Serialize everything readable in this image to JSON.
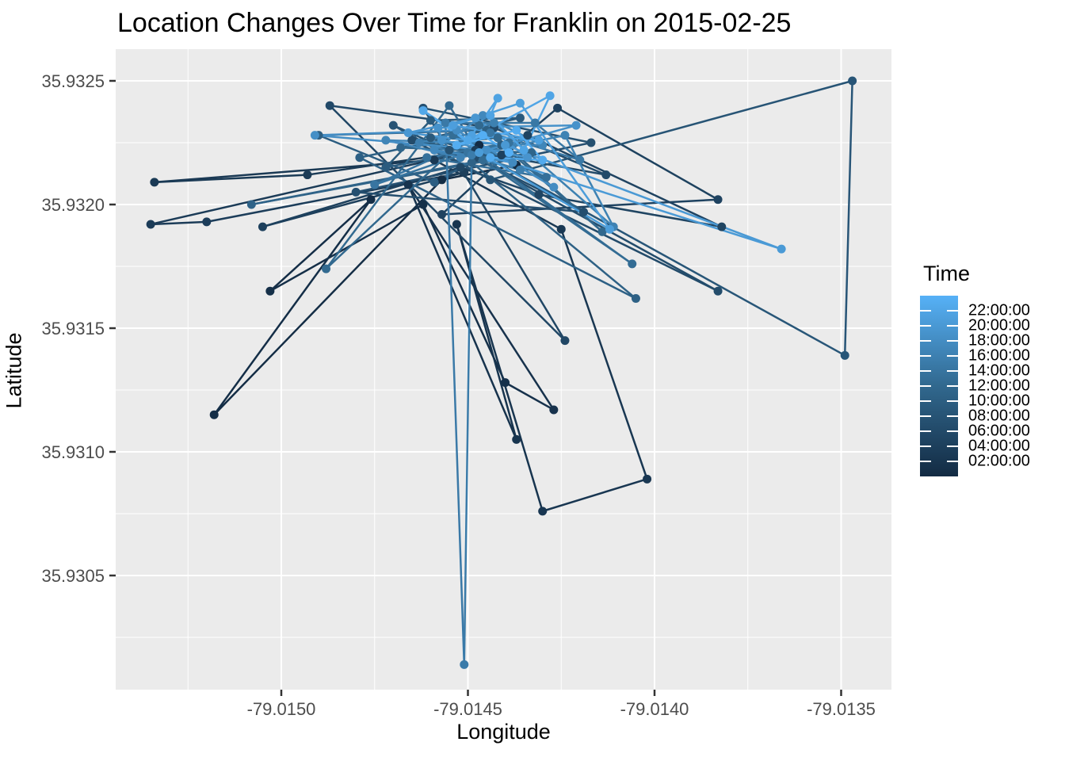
{
  "chart_data": {
    "type": "scatter",
    "subtype": "connected path over time (geom_path + geom_point, colour mapped to time)",
    "title": "Location Changes Over Time for Franklin on 2015-02-25",
    "xlabel": "Longitude",
    "ylabel": "Latitude",
    "x_ticks": [
      -79.015,
      -79.0145,
      -79.014,
      -79.0135
    ],
    "y_ticks": [
      35.9305,
      35.931,
      35.9315,
      35.932,
      35.9325
    ],
    "xlim": [
      -79.015443,
      -79.013365
    ],
    "ylim": [
      35.930038,
      35.932628
    ],
    "grid": {
      "major": true,
      "minor": true,
      "color": "#ffffff"
    },
    "panel_bg": "#EBEBEB",
    "tick_label_color": "#4D4D4D",
    "legend": {
      "title": "Time",
      "position": "right",
      "type": "colorbar",
      "low_color": "#132B43",
      "mid_color": "#31688E",
      "high_color": "#56B1F7",
      "domain_hours": [
        0,
        24
      ],
      "tick_hours": [
        22,
        20,
        18,
        16,
        14,
        12,
        10,
        8,
        6,
        4,
        2
      ],
      "tick_labels": [
        "22:00:00",
        "20:00:00",
        "18:00:00",
        "16:00:00",
        "14:00:00",
        "12:00:00",
        "10:00:00",
        "08:00:00",
        "06:00:00",
        "04:00:00",
        "02:00:00"
      ]
    },
    "points": [
      [
        -79.01447,
        35.93224,
        "00:05"
      ],
      [
        -79.01437,
        35.93216,
        "00:14"
      ],
      [
        -79.01457,
        35.9321,
        "00:23"
      ],
      [
        -79.01518,
        35.93115,
        "00:34"
      ],
      [
        -79.01476,
        35.93202,
        "00:41"
      ],
      [
        -79.01503,
        35.93165,
        "00:48"
      ],
      [
        -79.01462,
        35.932,
        "01:00"
      ],
      [
        -79.0144,
        35.93128,
        "01:15"
      ],
      [
        -79.01427,
        35.93117,
        "01:28"
      ],
      [
        -79.01466,
        35.93208,
        "01:34"
      ],
      [
        -79.01437,
        35.93105,
        "01:42"
      ],
      [
        -79.01453,
        35.93192,
        "01:55"
      ],
      [
        -79.0143,
        35.93076,
        "02:10"
      ],
      [
        -79.01402,
        35.93089,
        "02:24"
      ],
      [
        -79.01425,
        35.9319,
        "02:33"
      ],
      [
        -79.01459,
        35.93218,
        "02:40"
      ],
      [
        -79.01534,
        35.93209,
        "02:56"
      ],
      [
        -79.01493,
        35.93212,
        "03:05"
      ],
      [
        -79.01448,
        35.93222,
        "03:10"
      ],
      [
        -79.01535,
        35.93192,
        "03:24"
      ],
      [
        -79.0152,
        35.93193,
        "03:38"
      ],
      [
        -79.01451,
        35.93213,
        "03:52"
      ],
      [
        -79.01505,
        35.93191,
        "04:06"
      ],
      [
        -79.01441,
        35.9322,
        "04:20"
      ],
      [
        -79.01426,
        35.93239,
        "04:27"
      ],
      [
        -79.01383,
        35.93202,
        "04:34"
      ],
      [
        -79.01457,
        35.93196,
        "04:41"
      ],
      [
        -79.01434,
        35.93228,
        "04:48"
      ],
      [
        -79.01382,
        35.93191,
        "05:02"
      ],
      [
        -79.01431,
        35.93204,
        "05:09"
      ],
      [
        -79.01452,
        35.93215,
        "05:16"
      ],
      [
        -79.01424,
        35.93145,
        "05:30"
      ],
      [
        -79.01487,
        35.9324,
        "05:44"
      ],
      [
        -79.01443,
        35.93231,
        "05:58"
      ],
      [
        -79.01413,
        35.93212,
        "06:05"
      ],
      [
        -79.01465,
        35.93226,
        "06:12"
      ],
      [
        -79.01383,
        35.93165,
        "06:26"
      ],
      [
        -79.01448,
        35.93219,
        "06:40"
      ],
      [
        -79.01419,
        35.93197,
        "06:54"
      ],
      [
        -79.0148,
        35.93205,
        "07:08"
      ],
      [
        -79.01417,
        35.93225,
        "07:15"
      ],
      [
        -79.01462,
        35.93239,
        "07:22"
      ],
      [
        -79.01455,
        35.93222,
        "07:36"
      ],
      [
        -79.0147,
        35.93232,
        "07:50"
      ],
      [
        -79.01444,
        35.9321,
        "08:02"
      ],
      [
        -79.01347,
        35.9325,
        "08:15"
      ],
      [
        -79.01349,
        35.93139,
        "08:30"
      ],
      [
        -79.01446,
        35.9322,
        "08:46"
      ],
      [
        -79.0146,
        35.93227,
        "09:00"
      ],
      [
        -79.01436,
        35.93235,
        "09:14"
      ],
      [
        -79.0146,
        35.93234,
        "09:21"
      ],
      [
        -79.01472,
        35.93215,
        "09:28"
      ],
      [
        -79.01441,
        35.93224,
        "09:42"
      ],
      [
        -79.01459,
        35.93209,
        "09:56"
      ],
      [
        -79.0149,
        35.93228,
        "10:10"
      ],
      [
        -79.01445,
        35.9323,
        "10:24"
      ],
      [
        -79.01479,
        35.93219,
        "10:31"
      ],
      [
        -79.01405,
        35.93162,
        "10:38"
      ],
      [
        -79.01449,
        35.93217,
        "10:52"
      ],
      [
        -79.01508,
        35.932,
        "11:06"
      ],
      [
        -79.01433,
        35.93221,
        "11:20"
      ],
      [
        -79.01468,
        35.93223,
        "11:34"
      ],
      [
        -79.01442,
        35.93227,
        "11:48"
      ],
      [
        -79.01414,
        35.93189,
        "11:55"
      ],
      [
        -79.01447,
        35.93232,
        "12:02"
      ],
      [
        -79.01488,
        35.93174,
        "12:16"
      ],
      [
        -79.01455,
        35.9324,
        "12:23"
      ],
      [
        -79.01446,
        35.93218,
        "12:30"
      ],
      [
        -79.01406,
        35.93176,
        "12:44"
      ],
      [
        -79.01454,
        35.93228,
        "12:58"
      ],
      [
        -79.01429,
        35.93211,
        "13:12"
      ],
      [
        -79.01461,
        35.93219,
        "13:26"
      ],
      [
        -79.01439,
        35.93225,
        "13:40"
      ],
      [
        -79.0145,
        35.93221,
        "13:54"
      ],
      [
        -79.01475,
        35.93208,
        "14:08"
      ],
      [
        -79.01444,
        35.93229,
        "14:22"
      ],
      [
        -79.0142,
        35.93218,
        "14:36"
      ],
      [
        -79.01432,
        35.93233,
        "14:37"
      ],
      [
        -79.01456,
        35.93233,
        "14:50"
      ],
      [
        -79.01451,
        35.93014,
        "15:04"
      ],
      [
        -79.01449,
        35.9322,
        "15:20"
      ],
      [
        -79.01436,
        35.93214,
        "15:34"
      ],
      [
        -79.01463,
        35.93225,
        "15:48"
      ],
      [
        -79.01443,
        35.93233,
        "16:02"
      ],
      [
        -79.01411,
        35.93191,
        "16:16"
      ],
      [
        -79.01424,
        35.93228,
        "16:23"
      ],
      [
        -79.01452,
        35.93219,
        "16:30"
      ],
      [
        -79.01472,
        35.93226,
        "16:44"
      ],
      [
        -79.0143,
        35.93224,
        "16:58"
      ],
      [
        -79.01446,
        35.93236,
        "17:12"
      ],
      [
        -79.01459,
        35.93222,
        "17:26"
      ],
      [
        -79.01438,
        35.93217,
        "17:40"
      ],
      [
        -79.01427,
        35.93207,
        "17:54"
      ],
      [
        -79.01453,
        35.9323,
        "18:08"
      ],
      [
        -79.01491,
        35.93228,
        "18:22"
      ],
      [
        -79.01445,
        35.93222,
        "18:36"
      ],
      [
        -79.01421,
        35.93232,
        "18:50"
      ],
      [
        -79.01458,
        35.93231,
        "18:57"
      ],
      [
        -79.01457,
        35.93226,
        "19:04"
      ],
      [
        -79.01434,
        35.93219,
        "19:18"
      ],
      [
        -79.01448,
        35.93235,
        "19:32"
      ],
      [
        -79.01466,
        35.93229,
        "19:46"
      ],
      [
        -79.0144,
        35.93224,
        "20:00"
      ],
      [
        -79.01366,
        35.93182,
        "20:14"
      ],
      [
        -79.01447,
        35.93221,
        "20:28"
      ],
      [
        -79.01412,
        35.9319,
        "20:42"
      ],
      [
        -79.01436,
        35.93241,
        "20:49"
      ],
      [
        -79.01454,
        35.93232,
        "20:56"
      ],
      [
        -79.01431,
        35.93226,
        "21:10"
      ],
      [
        -79.01449,
        35.93228,
        "21:24"
      ],
      [
        -79.01442,
        35.93243,
        "21:38"
      ],
      [
        -79.01444,
        35.93236,
        "21:45"
      ],
      [
        -79.01435,
        35.93222,
        "21:52"
      ],
      [
        -79.01428,
        35.93244,
        "22:06"
      ],
      [
        -79.0145,
        35.93226,
        "22:20"
      ],
      [
        -79.01462,
        35.93238,
        "22:34"
      ],
      [
        -79.01444,
        35.93219,
        "22:48"
      ],
      [
        -79.0143,
        35.93218,
        "22:53"
      ],
      [
        -79.01437,
        35.9323,
        "23:02"
      ],
      [
        -79.01453,
        35.93224,
        "23:16"
      ],
      [
        -79.01446,
        35.93228,
        "23:30"
      ],
      [
        -79.01439,
        35.93221,
        "23:44"
      ]
    ]
  }
}
